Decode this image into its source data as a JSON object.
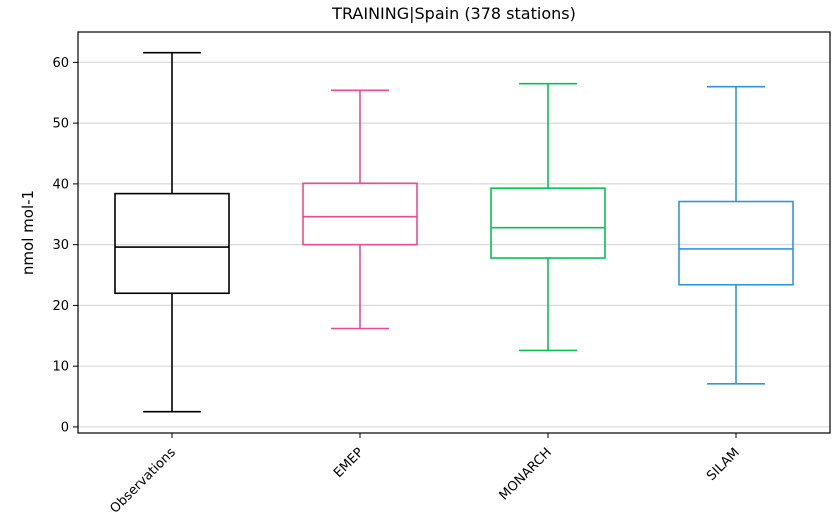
{
  "chart_data": {
    "type": "box",
    "title": "TRAINING|Spain (378 stations)",
    "xlabel": "",
    "ylabel": "nmol mol-1",
    "ylim": [
      -1,
      65
    ],
    "yticks": [
      0,
      10,
      20,
      30,
      40,
      50,
      60
    ],
    "grid": "horizontal",
    "categories": [
      "Observations",
      "EMEP",
      "MONARCH",
      "SILAM"
    ],
    "series": [
      {
        "category": "Observations",
        "color": "#000000",
        "whisker_low": 2.5,
        "q1": 22.0,
        "median": 29.6,
        "q3": 38.4,
        "whisker_high": 61.6
      },
      {
        "category": "EMEP",
        "color": "#EE4B8F",
        "whisker_low": 16.2,
        "q1": 30.0,
        "median": 34.6,
        "q3": 40.1,
        "whisker_high": 55.4
      },
      {
        "category": "MONARCH",
        "color": "#00C44F",
        "whisker_low": 12.6,
        "q1": 27.8,
        "median": 32.8,
        "q3": 39.3,
        "whisker_high": 56.5
      },
      {
        "category": "SILAM",
        "color": "#2D96E0",
        "whisker_low": 7.1,
        "q1": 23.4,
        "median": 29.3,
        "q3": 37.1,
        "whisker_high": 56.0
      }
    ]
  }
}
